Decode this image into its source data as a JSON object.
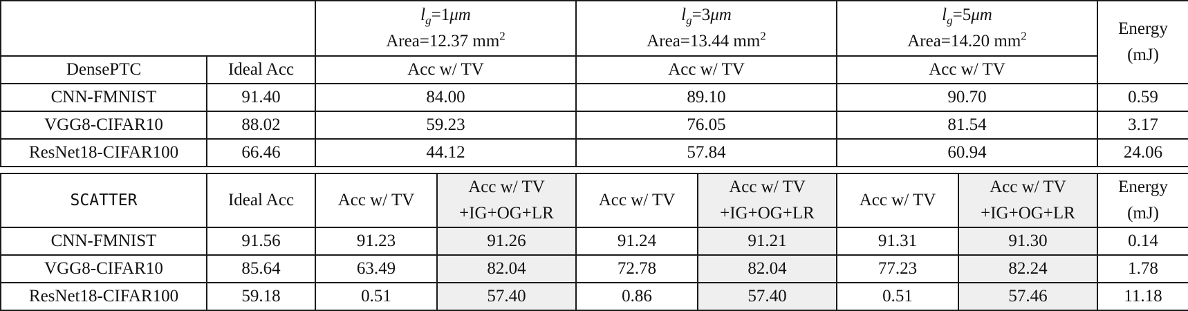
{
  "top": {
    "groups": [
      {
        "l": "l",
        "sub": "g",
        "eq": "=1",
        "unit": "μm",
        "area": "Area=12.37 mm",
        "sup": "2"
      },
      {
        "l": "l",
        "sub": "g",
        "eq": "=3",
        "unit": "μm",
        "area": "Area=13.44 mm",
        "sup": "2"
      },
      {
        "l": "l",
        "sub": "g",
        "eq": "=5",
        "unit": "μm",
        "area": "Area=14.20 mm",
        "sup": "2"
      }
    ],
    "energy_line1": "Energy",
    "energy_line2": "(mJ)",
    "model_header": "DensePTC",
    "ideal_header": "Ideal Acc",
    "acc_header": "Acc w/ TV",
    "rows": [
      {
        "model": "CNN-FMNIST",
        "ideal": "91.40",
        "v1": "84.00",
        "v2": "89.10",
        "v3": "90.70",
        "energy": "0.59"
      },
      {
        "model": "VGG8-CIFAR10",
        "ideal": "88.02",
        "v1": "59.23",
        "v2": "76.05",
        "v3": "81.54",
        "energy": "3.17"
      },
      {
        "model": "ResNet18-CIFAR100",
        "ideal": "66.46",
        "v1": "44.12",
        "v2": "57.84",
        "v3": "60.94",
        "energy": "24.06"
      }
    ]
  },
  "bottom": {
    "model_header": "SCATTER",
    "ideal_header": "Ideal Acc",
    "acc_header": "Acc w/ TV",
    "acc_plus_line1": "Acc w/ TV",
    "acc_plus_line2": "+IG+OG+LR",
    "energy_line1": "Energy",
    "energy_line2": "(mJ)",
    "rows": [
      {
        "model": "CNN-FMNIST",
        "ideal": "91.56",
        "a1": "91.23",
        "b1": "91.26",
        "a2": "91.24",
        "b2": "91.21",
        "a3": "91.31",
        "b3": "91.30",
        "energy": "0.14"
      },
      {
        "model": "VGG8-CIFAR10",
        "ideal": "85.64",
        "a1": "63.49",
        "b1": "82.04",
        "a2": "72.78",
        "b2": "82.04",
        "a3": "77.23",
        "b3": "82.24",
        "energy": "1.78"
      },
      {
        "model": "ResNet18-CIFAR100",
        "ideal": "59.18",
        "a1": "0.51",
        "b1": "57.40",
        "a2": "0.86",
        "b2": "57.40",
        "a3": "0.51",
        "b3": "57.46",
        "energy": "11.18"
      }
    ]
  }
}
